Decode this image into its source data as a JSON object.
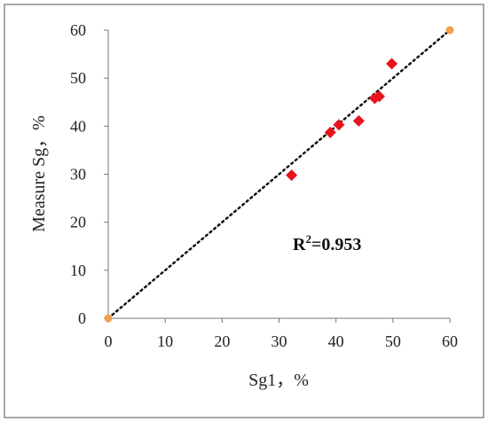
{
  "chart_data": {
    "type": "scatter",
    "xlabel": "Sg1，%",
    "ylabel": "Measure Sg，%",
    "xlim": [
      0,
      60
    ],
    "ylim": [
      0,
      60
    ],
    "xticks": [
      "0",
      "10",
      "20",
      "30",
      "40",
      "50",
      "60"
    ],
    "yticks": [
      "0",
      "10",
      "20",
      "30",
      "40",
      "50",
      "60"
    ],
    "grid": false,
    "series": [
      {
        "marker": "diamond",
        "color": "#e8141c",
        "points": [
          {
            "x": 32.2,
            "y": 29.8
          },
          {
            "x": 39.0,
            "y": 38.7
          },
          {
            "x": 40.5,
            "y": 40.3
          },
          {
            "x": 44.0,
            "y": 41.1
          },
          {
            "x": 46.8,
            "y": 45.8
          },
          {
            "x": 47.6,
            "y": 46.2
          },
          {
            "x": 49.8,
            "y": 53.0
          }
        ]
      }
    ],
    "endpoints": {
      "color": "#f5a04a",
      "points": [
        {
          "x": 0,
          "y": 0
        },
        {
          "x": 60,
          "y": 60
        }
      ]
    },
    "fit_line": {
      "style": "dotted",
      "color": "#111111",
      "from": [
        0,
        0
      ],
      "to": [
        60,
        60
      ]
    },
    "annotation": {
      "base": "R",
      "sup": "2",
      "rest": "=0.953"
    }
  }
}
